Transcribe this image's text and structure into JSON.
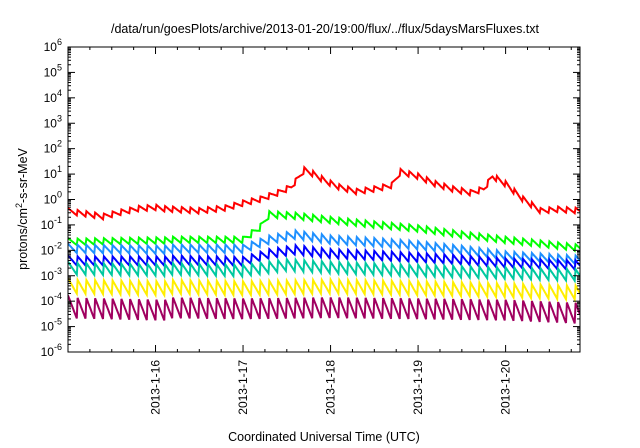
{
  "chart_data": {
    "type": "line",
    "title": "/data/run/goesPlots/archive/2013-01-20/19:00/flux/../flux/5daysMarsFluxes.txt",
    "xlabel": "Coordinated Universal Time (UTC)",
    "ylabel": {
      "pre": "protons/cm",
      "sup": "2",
      "post": "-s-sr-MeV"
    },
    "yscale": "log",
    "ylim_exp": [
      -6,
      6
    ],
    "y_ticks": [
      {
        "base": "10",
        "exp": "6"
      },
      {
        "base": "10",
        "exp": "5"
      },
      {
        "base": "10",
        "exp": "4"
      },
      {
        "base": "10",
        "exp": "3"
      },
      {
        "base": "10",
        "exp": "2"
      },
      {
        "base": "10",
        "exp": "1"
      },
      {
        "base": "10",
        "exp": "0"
      },
      {
        "base": "10",
        "exp": "-1"
      },
      {
        "base": "10",
        "exp": "-2"
      },
      {
        "base": "10",
        "exp": "-3"
      },
      {
        "base": "10",
        "exp": "-4"
      },
      {
        "base": "10",
        "exp": "-5"
      },
      {
        "base": "10",
        "exp": "-6"
      }
    ],
    "xlim_days": [
      15.0,
      20.85
    ],
    "x_ticks": [
      {
        "label": "2013-1-16",
        "day": 16
      },
      {
        "label": "2013-1-17",
        "day": 17
      },
      {
        "label": "2013-1-18",
        "day": 18
      },
      {
        "label": "2013-1-19",
        "day": 19
      },
      {
        "label": "2013-1-20",
        "day": 20
      }
    ],
    "grid": false,
    "legend": "none",
    "series": [
      {
        "color": "#ff0000",
        "width": 2.0,
        "x": [
          15.0,
          15.2,
          15.4,
          15.6,
          15.8,
          16.0,
          16.2,
          16.5,
          16.8,
          17.0,
          17.2,
          17.4,
          17.55,
          17.7,
          17.8,
          17.95,
          18.1,
          18.3,
          18.5,
          18.7,
          18.8,
          19.0,
          19.2,
          19.4,
          19.6,
          19.75,
          19.85,
          20.0,
          20.2,
          20.4,
          20.6,
          20.85
        ],
        "y": [
          0.35,
          0.28,
          0.22,
          0.32,
          0.45,
          0.5,
          0.4,
          0.35,
          0.45,
          0.7,
          1.0,
          1.8,
          3.0,
          14.0,
          10.0,
          5.0,
          3.0,
          2.0,
          2.5,
          3.5,
          12.0,
          8.0,
          4.0,
          2.5,
          1.8,
          2.5,
          8.0,
          4.0,
          1.0,
          0.35,
          0.4,
          0.35
        ],
        "amp": 0.12,
        "period": 0.1
      },
      {
        "color": "#00ff00",
        "width": 2.0,
        "x": [
          15.0,
          16.0,
          17.0,
          17.2,
          17.3,
          17.6,
          18.0,
          18.5,
          19.0,
          19.5,
          20.0,
          20.85
        ],
        "y": [
          0.022,
          0.025,
          0.025,
          0.08,
          0.25,
          0.22,
          0.15,
          0.1,
          0.07,
          0.04,
          0.025,
          0.012
        ],
        "amp": 0.14,
        "period": 0.1
      },
      {
        "color": "#1e90ff",
        "width": 2.0,
        "x": [
          15.0,
          16.0,
          17.0,
          17.3,
          17.6,
          18.0,
          18.5,
          19.0,
          19.5,
          20.0,
          20.85
        ],
        "y": [
          0.012,
          0.011,
          0.011,
          0.025,
          0.04,
          0.025,
          0.02,
          0.015,
          0.01,
          0.006,
          0.004
        ],
        "amp": 0.18,
        "period": 0.1
      },
      {
        "color": "#0000ff",
        "width": 2.0,
        "x": [
          15.0,
          16.0,
          17.0,
          17.3,
          17.6,
          18.0,
          18.5,
          19.0,
          19.5,
          20.0,
          20.85
        ],
        "y": [
          0.004,
          0.004,
          0.0035,
          0.007,
          0.01,
          0.007,
          0.006,
          0.005,
          0.004,
          0.003,
          0.0025
        ],
        "amp": 0.2,
        "period": 0.1
      },
      {
        "color": "#00c8a0",
        "width": 2.0,
        "x": [
          15.0,
          16.0,
          17.0,
          17.5,
          18.0,
          19.0,
          20.0,
          20.85
        ],
        "y": [
          0.002,
          0.0018,
          0.0015,
          0.0025,
          0.002,
          0.0015,
          0.0012,
          0.001
        ],
        "amp": 0.25,
        "period": 0.1
      },
      {
        "color": "#ffee00",
        "width": 2.0,
        "x": [
          15.0,
          16.0,
          17.0,
          18.0,
          19.0,
          20.0,
          20.85
        ],
        "y": [
          0.0004,
          0.00035,
          0.0003,
          0.00035,
          0.0003,
          0.00025,
          0.0002
        ],
        "amp": 0.3,
        "period": 0.1
      },
      {
        "color": "#a00060",
        "width": 2.0,
        "x": [
          15.0,
          16.0,
          17.0,
          18.0,
          19.0,
          20.0,
          20.85
        ],
        "y": [
          6e-05,
          5e-05,
          4.5e-05,
          5e-05,
          4.5e-05,
          4e-05,
          3e-05
        ],
        "amp": 0.45,
        "period": 0.1
      }
    ]
  }
}
